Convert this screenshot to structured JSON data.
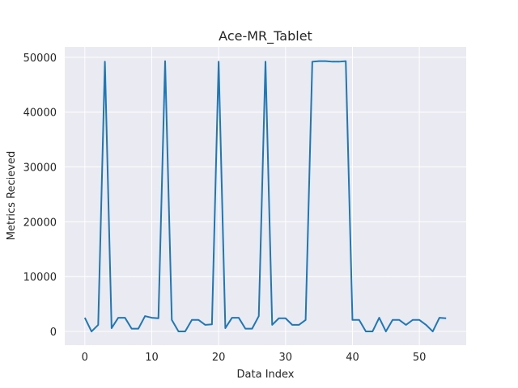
{
  "chart_data": {
    "type": "line",
    "title": "Ace-MR_Tablet",
    "xlabel": "Data Index",
    "ylabel": "Metrics Recieved",
    "xlim": [
      -3,
      57
    ],
    "ylim": [
      -2500,
      51900
    ],
    "x_ticks": [
      0,
      10,
      20,
      30,
      40,
      50
    ],
    "y_ticks": [
      0,
      10000,
      20000,
      30000,
      40000,
      50000
    ],
    "grid": true,
    "legend": "none",
    "colors": {
      "line": "#1f77b4",
      "background": "#eaeaf2",
      "grid": "#ffffff"
    },
    "series": [
      {
        "x": [
          0,
          1,
          2,
          3,
          4,
          5,
          6,
          7,
          8,
          9,
          10,
          11,
          12,
          13,
          14,
          15,
          16,
          17,
          18,
          19,
          20,
          21,
          22,
          23,
          24,
          25,
          26,
          27,
          28,
          29,
          30,
          31,
          32,
          33,
          34,
          35,
          36,
          37,
          38,
          39,
          40,
          41,
          42,
          43,
          44,
          45,
          46,
          47,
          48,
          49,
          50,
          51,
          52,
          53,
          54
        ],
        "values": [
          2500,
          0,
          1200,
          49200,
          600,
          2500,
          2500,
          500,
          500,
          2800,
          2500,
          2400,
          49300,
          2100,
          0,
          0,
          2100,
          2100,
          1200,
          1300,
          49200,
          600,
          2500,
          2500,
          500,
          500,
          2800,
          49200,
          1200,
          2400,
          2400,
          1200,
          1200,
          2100,
          49200,
          49300,
          49300,
          49200,
          49200,
          49300,
          2100,
          2100,
          0,
          0,
          2500,
          0,
          2100,
          2100,
          1200,
          2100,
          2100,
          1200,
          0,
          2500,
          2400
        ]
      }
    ]
  }
}
